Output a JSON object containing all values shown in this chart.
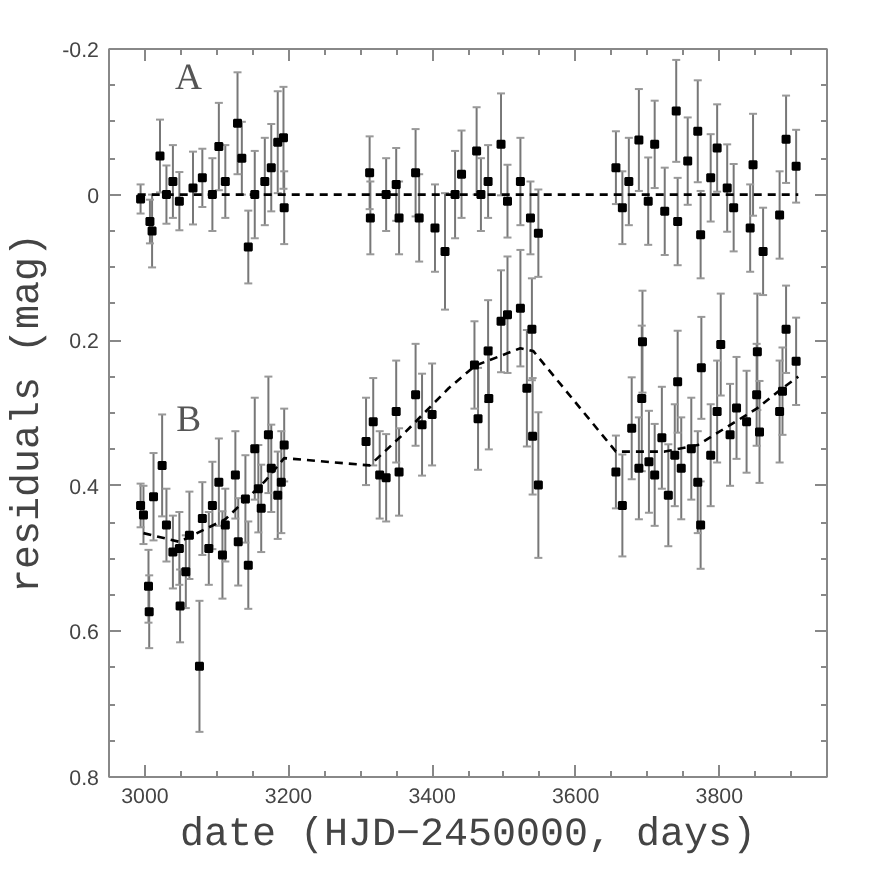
{
  "chart_data": {
    "type": "scatter",
    "xlabel": "date (HJD−2450000, days)",
    "ylabel": "residuals (mag)",
    "xlim": [
      2950,
      3950
    ],
    "xticks": [
      3000,
      3200,
      3400,
      3600,
      3800
    ],
    "ylim": [
      0.8,
      -0.2
    ],
    "yticks": [
      -0.2,
      0,
      0.2,
      0.4,
      0.6,
      0.8
    ],
    "grid": false,
    "marker": "square",
    "series": [
      {
        "name": "A",
        "color": "#000000",
        "x": [
          2994,
          3007,
          3010,
          3021,
          3030,
          3039,
          3048,
          3067,
          3080,
          3094,
          3103,
          3112,
          3129,
          3135,
          3144,
          3153,
          3167,
          3176,
          3185,
          3193,
          3194,
          3313,
          3314,
          3336,
          3350,
          3354,
          3377,
          3382,
          3404,
          3418,
          3432,
          3441,
          3462,
          3468,
          3478,
          3496,
          3505,
          3523,
          3537,
          3548,
          3656,
          3665,
          3674,
          3688,
          3701,
          3710,
          3724,
          3740,
          3742,
          3756,
          3770,
          3774,
          3788,
          3797,
          3811,
          3820,
          3843,
          3847,
          3861,
          3884,
          3893,
          3907
        ],
        "values": [
          0.006,
          0.037,
          0.05,
          -0.053,
          0,
          -0.018,
          0.009,
          -0.009,
          -0.023,
          0,
          -0.066,
          -0.018,
          -0.098,
          -0.05,
          0.072,
          0,
          -0.018,
          -0.037,
          -0.072,
          -0.078,
          0.018,
          -0.03,
          0.032,
          0,
          -0.014,
          0.032,
          -0.03,
          0.032,
          0.046,
          0.078,
          0,
          -0.028,
          -0.06,
          0,
          -0.018,
          -0.069,
          0.009,
          -0.018,
          0.032,
          0.053,
          -0.037,
          0.018,
          -0.018,
          -0.075,
          0.009,
          -0.069,
          0.023,
          -0.115,
          0.037,
          -0.046,
          -0.087,
          0.055,
          -0.023,
          -0.064,
          -0.009,
          0.018,
          0.046,
          -0.041,
          0.078,
          0.028,
          -0.076,
          -0.039
        ],
        "errors": [
          0.02,
          0.03,
          0.05,
          0.05,
          0.04,
          0.05,
          0.04,
          0.05,
          0.04,
          0.05,
          0.06,
          0.05,
          0.07,
          0.05,
          0.05,
          0.06,
          0.06,
          0.06,
          0.07,
          0.07,
          0.05,
          0.05,
          0.05,
          0.05,
          0.05,
          0.05,
          0.06,
          0.06,
          0.06,
          0.08,
          0.06,
          0.06,
          0.06,
          0.05,
          0.05,
          0.07,
          0.05,
          0.06,
          0.05,
          0.06,
          0.05,
          0.05,
          0.06,
          0.07,
          0.06,
          0.06,
          0.06,
          0.07,
          0.06,
          0.06,
          0.07,
          0.06,
          0.06,
          0.06,
          0.06,
          0.06,
          0.06,
          0.07,
          0.06,
          0.06,
          0.06,
          0.05
        ]
      },
      {
        "type": "line",
        "color": "#000000",
        "line_style": "dashed",
        "marker": "none",
        "x": [
          2990,
          3910
        ],
        "values": [
          0,
          0
        ]
      },
      {
        "name": "B",
        "color": "#000000",
        "x": [
          2994,
          2998,
          3005,
          3006,
          3012,
          3024,
          3030,
          3039,
          3048,
          3049,
          3057,
          3062,
          3076,
          3080,
          3089,
          3094,
          3103,
          3108,
          3112,
          3126,
          3130,
          3140,
          3144,
          3153,
          3158,
          3162,
          3172,
          3176,
          3185,
          3190,
          3194,
          3308,
          3318,
          3327,
          3336,
          3350,
          3354,
          3377,
          3386,
          3400,
          3459,
          3478,
          3496,
          3505,
          3523,
          3539,
          3464,
          3479,
          3532,
          3540,
          3548,
          3656,
          3665,
          3678,
          3688,
          3692,
          3702,
          3710,
          3720,
          3729,
          3738,
          3747,
          3761,
          3770,
          3774,
          3788,
          3797,
          3815,
          3824,
          3838,
          3852,
          3856,
          3884,
          3888,
          3693,
          3742,
          3775,
          3802,
          3853,
          3893,
          3907
        ],
        "values": [
          0.427,
          0.44,
          0.538,
          0.573,
          0.415,
          0.372,
          0.454,
          0.491,
          0.486,
          0.565,
          0.518,
          0.468,
          0.648,
          0.445,
          0.486,
          0.427,
          0.395,
          0.495,
          0.454,
          0.385,
          0.477,
          0.418,
          0.509,
          0.349,
          0.404,
          0.431,
          0.33,
          0.376,
          0.413,
          0.395,
          0.344,
          0.339,
          0.312,
          0.385,
          0.389,
          0.298,
          0.381,
          0.275,
          0.316,
          0.302,
          0.234,
          0.215,
          0.174,
          0.165,
          0.156,
          0.185,
          0.308,
          0.28,
          0.266,
          0.332,
          0.399,
          0.381,
          0.427,
          0.321,
          0.376,
          0.28,
          0.367,
          0.385,
          0.334,
          0.413,
          0.358,
          0.376,
          0.349,
          0.395,
          0.454,
          0.358,
          0.298,
          0.33,
          0.293,
          0.312,
          0.275,
          0.326,
          0.298,
          0.27,
          0.202,
          0.257,
          0.238,
          0.206,
          0.216,
          0.185,
          0.229
        ],
        "errors": [
          0.03,
          0.04,
          0.05,
          0.05,
          0.06,
          0.07,
          0.05,
          0.05,
          0.05,
          0.05,
          0.05,
          0.06,
          0.09,
          0.05,
          0.05,
          0.06,
          0.06,
          0.06,
          0.05,
          0.06,
          0.06,
          0.06,
          0.06,
          0.07,
          0.06,
          0.06,
          0.08,
          0.06,
          0.06,
          0.07,
          0.05,
          0.06,
          0.06,
          0.06,
          0.06,
          0.07,
          0.06,
          0.07,
          0.07,
          0.07,
          0.06,
          0.07,
          0.07,
          0.08,
          0.08,
          0.07,
          0.07,
          0.07,
          0.08,
          0.08,
          0.1,
          0.05,
          0.07,
          0.07,
          0.07,
          0.1,
          0.07,
          0.07,
          0.07,
          0.07,
          0.07,
          0.07,
          0.07,
          0.07,
          0.06,
          0.07,
          0.07,
          0.07,
          0.07,
          0.07,
          0.07,
          0.07,
          0.07,
          0.06,
          0.07,
          0.07,
          0.07,
          0.07,
          0.08,
          0.06,
          0.06
        ]
      },
      {
        "type": "line",
        "color": "#000000",
        "line_style": "dashed",
        "marker": "none",
        "x": [
          2998,
          3048,
          3112,
          3167,
          3194,
          3313,
          3359,
          3423,
          3460,
          3523,
          3541,
          3656,
          3724,
          3770,
          3852,
          3888,
          3910
        ],
        "values": [
          0.465,
          0.477,
          0.446,
          0.394,
          0.362,
          0.372,
          0.33,
          0.266,
          0.235,
          0.211,
          0.215,
          0.353,
          0.353,
          0.344,
          0.294,
          0.266,
          0.25
        ]
      }
    ]
  }
}
